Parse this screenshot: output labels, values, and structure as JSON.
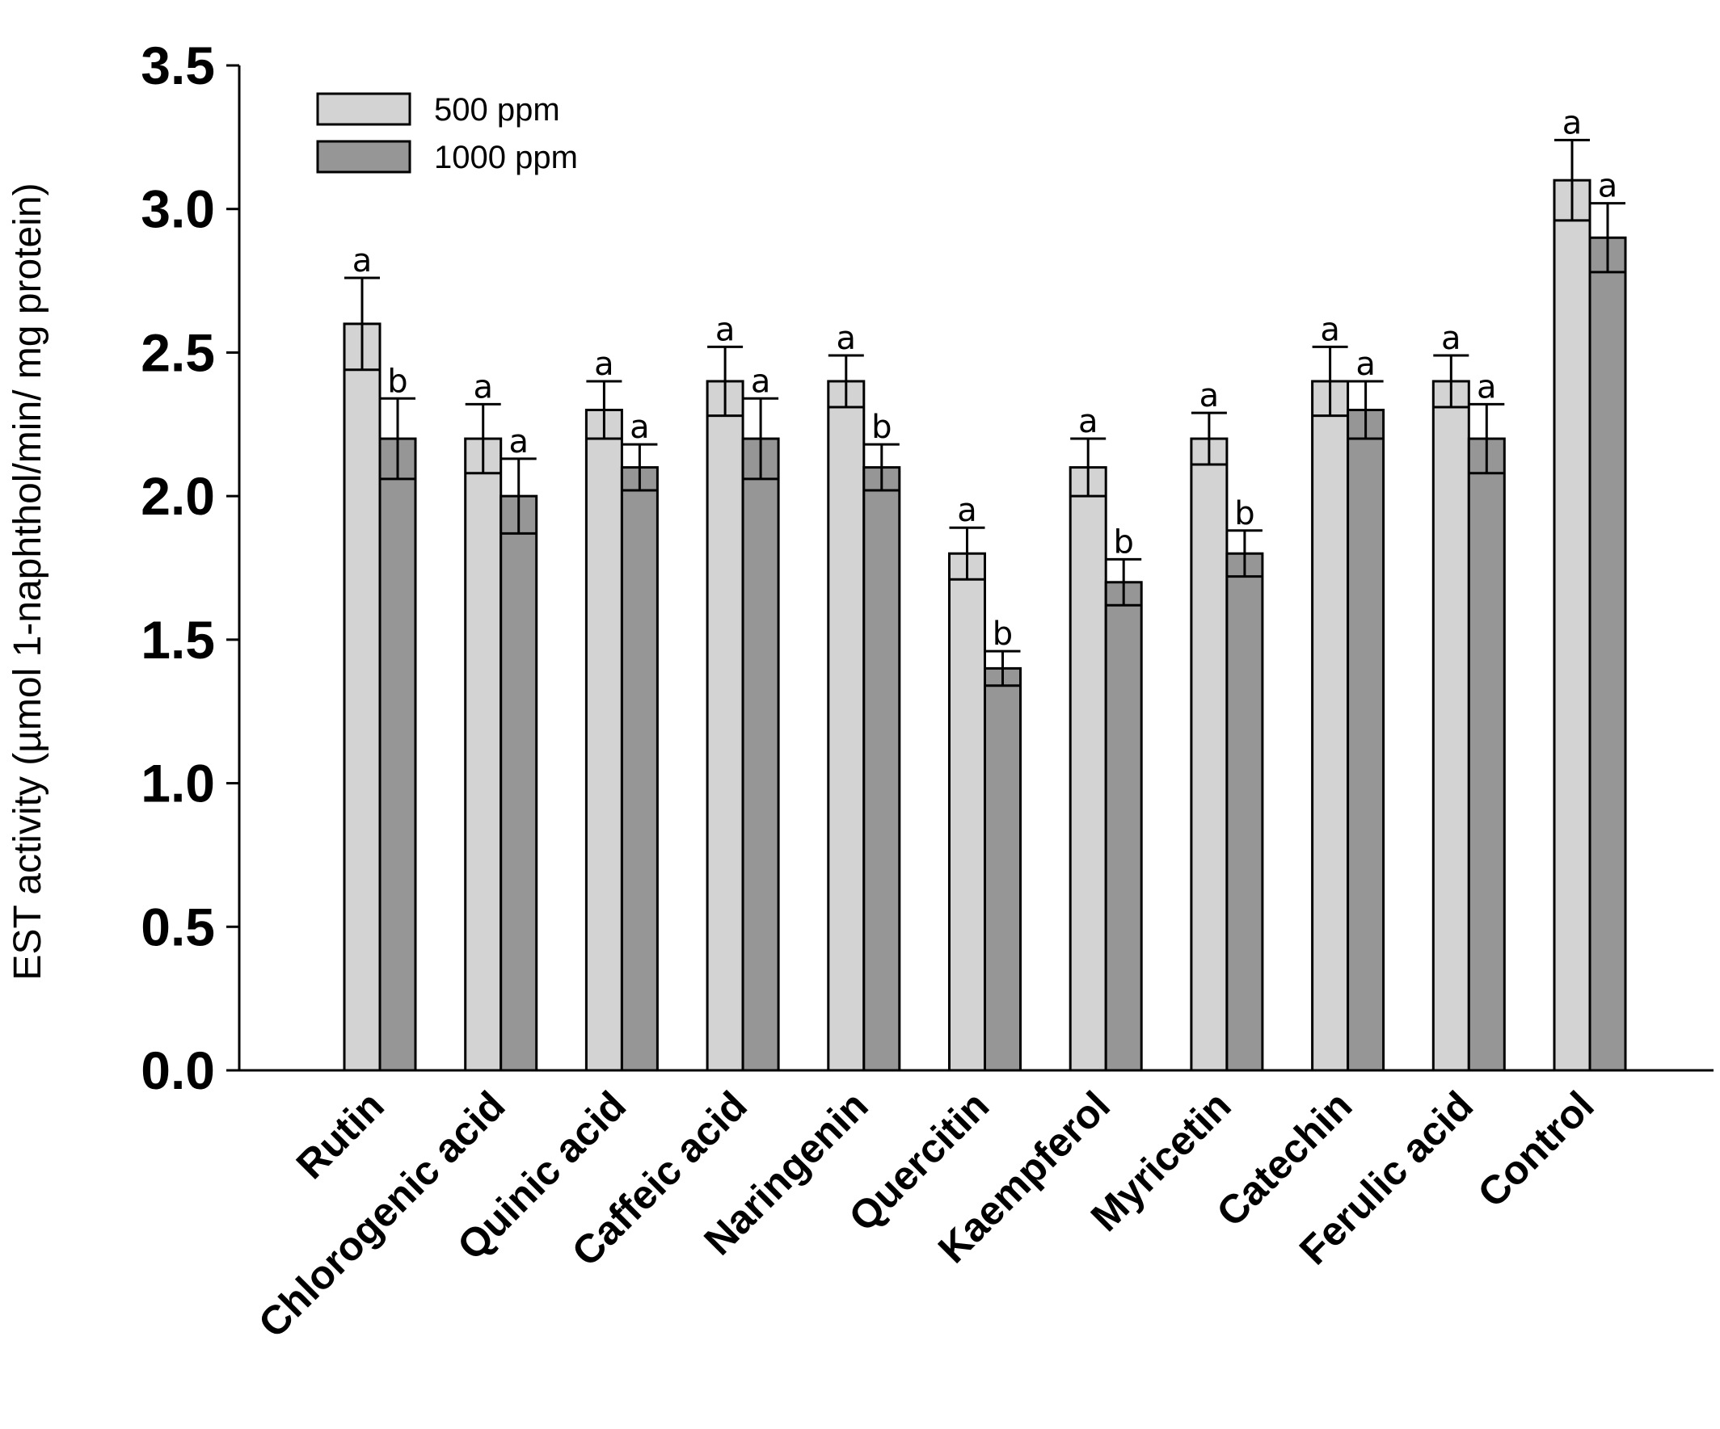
{
  "chart_data": {
    "type": "bar",
    "ylabel": "EST activity (µmol 1-naphthol/min/ mg protein)",
    "xlabel": "",
    "ylim": [
      0,
      3.5
    ],
    "yticks": [
      "0.0",
      "0.5",
      "1.0",
      "1.5",
      "2.0",
      "2.5",
      "3.0",
      "3.5"
    ],
    "legend_position": "top-left",
    "categories": [
      "Rutin",
      "Chlorogenic  acid",
      "Quinic acid",
      "Caffeic acid",
      "Naringenin",
      "Quercitin",
      "Kaempferol",
      "Myricetin",
      "Catechin",
      "Ferulic acid",
      "Control"
    ],
    "series": [
      {
        "name": "500 ppm",
        "color": "#d3d3d3",
        "values": [
          2.6,
          2.2,
          2.3,
          2.4,
          2.4,
          1.8,
          2.1,
          2.2,
          2.4,
          2.4,
          3.1
        ],
        "errors": [
          0.16,
          0.12,
          0.1,
          0.12,
          0.09,
          0.09,
          0.1,
          0.09,
          0.12,
          0.09,
          0.14
        ],
        "labels": [
          "a",
          "a",
          "a",
          "a",
          "a",
          "a",
          "a",
          "a",
          "a",
          "a",
          "a"
        ]
      },
      {
        "name": "1000 ppm",
        "color": "#969696",
        "values": [
          2.2,
          2.0,
          2.1,
          2.2,
          2.1,
          1.4,
          1.7,
          1.8,
          2.3,
          2.2,
          2.9
        ],
        "errors": [
          0.14,
          0.13,
          0.08,
          0.14,
          0.08,
          0.06,
          0.08,
          0.08,
          0.1,
          0.12,
          0.12
        ],
        "labels": [
          "b",
          "a",
          "a",
          "a",
          "b",
          "b",
          "b",
          "b",
          "a",
          "a",
          "a"
        ]
      }
    ]
  }
}
